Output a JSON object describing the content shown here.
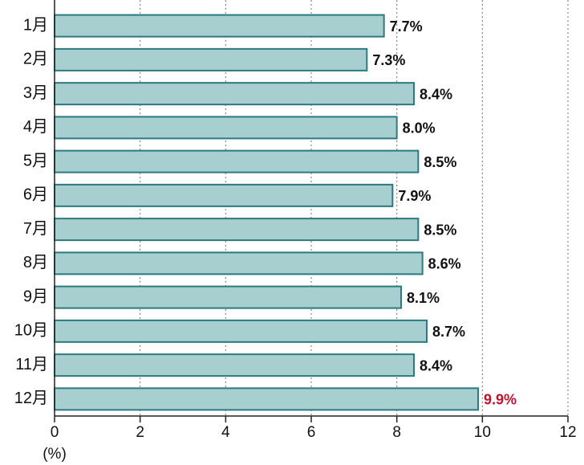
{
  "chart_data": {
    "type": "hbar",
    "categories": [
      "1月",
      "2月",
      "3月",
      "4月",
      "5月",
      "6月",
      "7月",
      "8月",
      "9月",
      "10月",
      "11月",
      "12月"
    ],
    "values": [
      7.7,
      7.3,
      8.4,
      8.0,
      8.5,
      7.9,
      8.5,
      8.6,
      8.1,
      8.7,
      8.4,
      9.9
    ],
    "value_labels": [
      "7.7%",
      "7.3%",
      "8.4%",
      "8.0%",
      "8.5%",
      "7.9%",
      "8.5%",
      "8.6%",
      "8.1%",
      "8.7%",
      "8.4%",
      "9.9%"
    ],
    "label_colors": [
      "#111111",
      "#111111",
      "#111111",
      "#111111",
      "#111111",
      "#111111",
      "#111111",
      "#111111",
      "#111111",
      "#111111",
      "#111111",
      "#c0132b"
    ],
    "color": "#a8cfcf",
    "edge_color": "#2a7a80",
    "x_label": "(%)",
    "xlim": [
      0,
      12
    ],
    "xticks": [
      0,
      2,
      4,
      6,
      8,
      10,
      12
    ],
    "grid": true
  }
}
